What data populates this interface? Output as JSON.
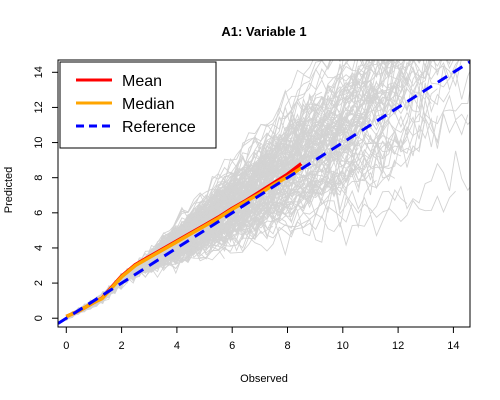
{
  "chart_data": {
    "type": "line",
    "title": "A1: Variable 1",
    "xlabel": "Observed",
    "ylabel": "Predicted",
    "xlim": [
      -0.3,
      14.6
    ],
    "ylim": [
      -0.5,
      14.7
    ],
    "x_ticks": [
      0,
      2,
      4,
      6,
      8,
      10,
      12,
      14
    ],
    "y_ticks": [
      0,
      2,
      4,
      6,
      8,
      10,
      12,
      14
    ],
    "grid": false,
    "legend": {
      "placement": "top-left",
      "entries": [
        {
          "label": "Mean",
          "color": "#ff0000",
          "style": "solid"
        },
        {
          "label": "Median",
          "color": "#ffa500",
          "style": "solid"
        },
        {
          "label": "Reference",
          "color": "#0000ff",
          "style": "dashed"
        }
      ]
    },
    "series": [
      {
        "name": "Mean",
        "color": "#ff0000",
        "style": "solid",
        "points": [
          [
            0.0,
            0.1
          ],
          [
            0.5,
            0.45
          ],
          [
            1.0,
            0.9
          ],
          [
            1.3,
            1.15
          ],
          [
            1.6,
            1.7
          ],
          [
            2.0,
            2.4
          ],
          [
            2.5,
            3.05
          ],
          [
            3.0,
            3.5
          ],
          [
            3.5,
            3.95
          ],
          [
            4.0,
            4.4
          ],
          [
            4.5,
            4.85
          ],
          [
            5.0,
            5.3
          ],
          [
            5.5,
            5.75
          ],
          [
            6.0,
            6.25
          ],
          [
            6.5,
            6.7
          ],
          [
            7.0,
            7.2
          ],
          [
            7.5,
            7.7
          ],
          [
            8.0,
            8.2
          ],
          [
            8.5,
            8.8
          ]
        ]
      },
      {
        "name": "Median",
        "color": "#ffa500",
        "style": "solid",
        "points": [
          [
            0.0,
            0.1
          ],
          [
            0.5,
            0.45
          ],
          [
            1.0,
            0.9
          ],
          [
            1.3,
            1.12
          ],
          [
            1.6,
            1.65
          ],
          [
            2.0,
            2.35
          ],
          [
            2.5,
            3.0
          ],
          [
            3.0,
            3.45
          ],
          [
            3.5,
            3.9
          ],
          [
            4.0,
            4.35
          ],
          [
            4.5,
            4.8
          ],
          [
            5.0,
            5.25
          ],
          [
            5.5,
            5.7
          ],
          [
            6.0,
            6.2
          ],
          [
            6.5,
            6.65
          ],
          [
            7.0,
            7.1
          ],
          [
            7.5,
            7.6
          ],
          [
            8.0,
            8.05
          ],
          [
            8.5,
            8.55
          ]
        ]
      },
      {
        "name": "Reference",
        "color": "#0000ff",
        "style": "dashed",
        "points": [
          [
            -0.3,
            -0.3
          ],
          [
            14.6,
            14.6
          ]
        ]
      }
    ],
    "background_traces": {
      "color": "#d3d3d3",
      "count": 220,
      "description_units": "observed vs predicted per-sample curves"
    }
  }
}
